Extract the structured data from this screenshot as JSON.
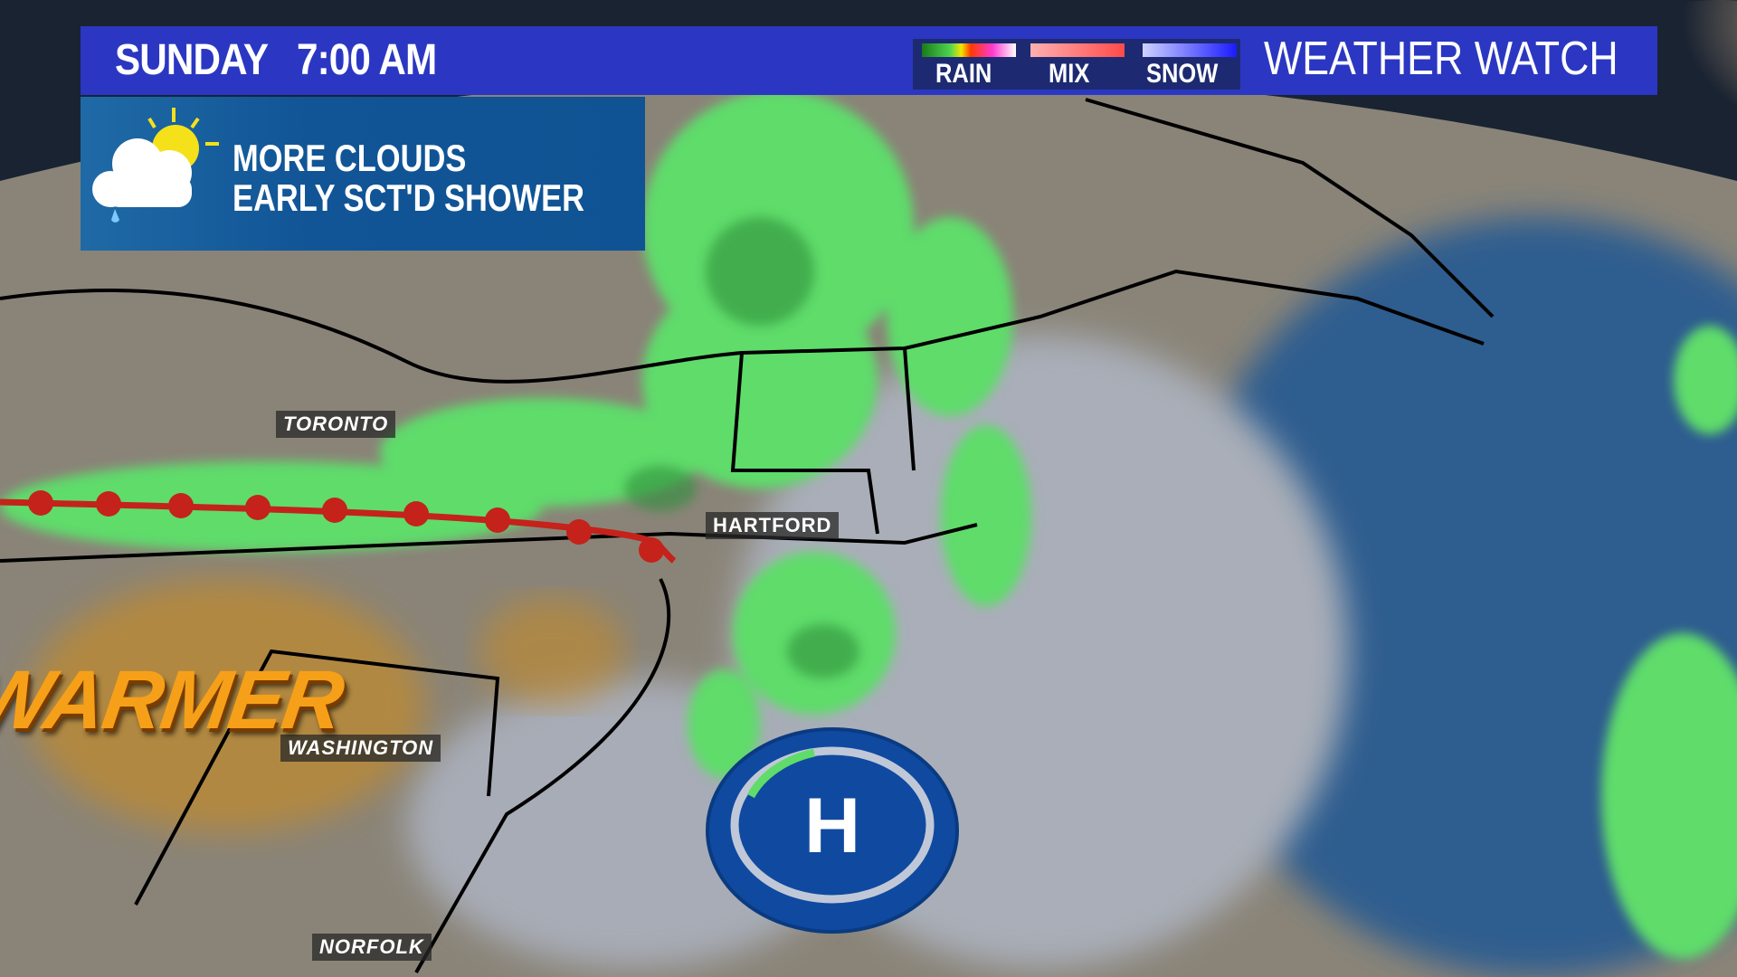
{
  "header": {
    "day_time": "SUNDAY   7:00 AM",
    "title": "WEATHER WATCH"
  },
  "legend": {
    "items": [
      {
        "label": "RAIN",
        "colors": [
          "#1a7a1a",
          "#4fd34f",
          "#f2e600",
          "#ff3a00",
          "#ff3ad0",
          "#ffffff"
        ]
      },
      {
        "label": "MIX",
        "colors": [
          "#ffb0b0",
          "#ff4a4a"
        ]
      },
      {
        "label": "SNOW",
        "colors": [
          "#cfd3ff",
          "#1a1aff"
        ]
      }
    ]
  },
  "forecast": {
    "icon": "partly-cloudy-rain-icon",
    "line1": "MORE CLOUDS",
    "line2": "EARLY SCT'D SHOWER"
  },
  "map": {
    "cities": [
      "TORONTO",
      "HARTFORD",
      "WASHINGTON",
      "NORFOLK"
    ],
    "annotation": "WARMER",
    "pressure_center": "H",
    "front": "warm-front",
    "colors": {
      "land": "#7d7566",
      "ocean": "#2d5a8c",
      "rain": "#5fdc6a",
      "front": "#c4221a",
      "high": "#0f4aa0"
    }
  }
}
